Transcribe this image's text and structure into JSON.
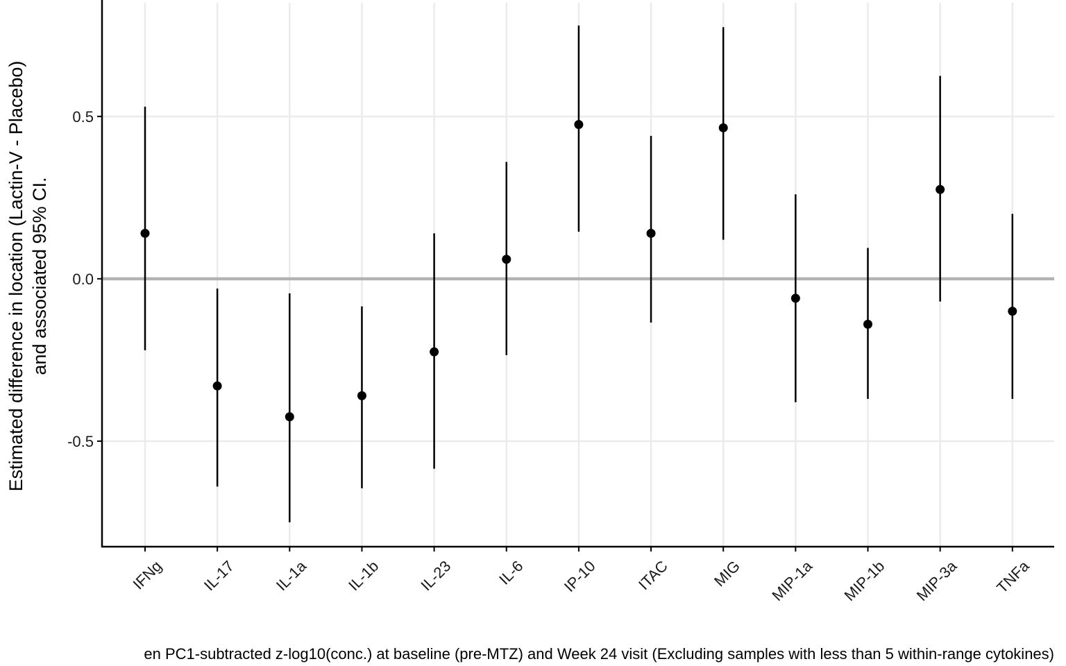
{
  "chart_data": {
    "type": "scatter",
    "subtype": "point-range",
    "categories": [
      "IFNg",
      "IL-17",
      "IL-1a",
      "IL-1b",
      "IL-23",
      "IL-6",
      "IP-10",
      "ITAC",
      "MIG",
      "MIP-1a",
      "MIP-1b",
      "MIP-3a",
      "TNFa"
    ],
    "estimates": [
      0.14,
      -0.33,
      -0.425,
      -0.36,
      -0.225,
      0.06,
      0.475,
      0.14,
      0.465,
      -0.06,
      -0.14,
      0.275,
      -0.1
    ],
    "ci_lower": [
      -0.22,
      -0.64,
      -0.75,
      -0.645,
      -0.585,
      -0.235,
      0.145,
      -0.135,
      0.12,
      -0.38,
      -0.37,
      -0.07,
      -0.37
    ],
    "ci_upper": [
      0.53,
      -0.03,
      -0.045,
      -0.085,
      0.14,
      0.36,
      0.78,
      0.44,
      0.775,
      0.26,
      0.095,
      0.625,
      0.2
    ],
    "ylim": [
      -0.825,
      0.85
    ],
    "yticks": [
      -0.5,
      0.0,
      0.5
    ],
    "ytick_labels": [
      "-0.5",
      "0.0",
      "0.5"
    ],
    "reference_line": 0.0,
    "ylabel_line1": "Estimated difference in location (Lactin-V - Placebo)",
    "ylabel_line2": "and associated 95% CI.",
    "xlabel": "en PC1-subtracted z-log10(conc.) at baseline (pre-MTZ) and Week 24 visit (Excluding samples with less than 5 within-range cytokines)",
    "grid": true,
    "legend": "none",
    "colors": {
      "point": "#000000",
      "errorbar": "#000000",
      "grid": "#ebebeb",
      "reference_line": "#b3b3b3",
      "axis": "#000000"
    }
  }
}
